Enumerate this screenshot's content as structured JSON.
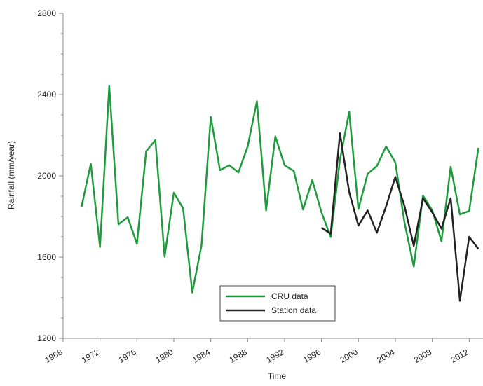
{
  "chart_data": {
    "type": "line",
    "x_label": "Time",
    "y_label": "Rainfall (mm/year)",
    "x": [
      1970,
      1971,
      1972,
      1973,
      1974,
      1975,
      1976,
      1977,
      1978,
      1979,
      1980,
      1981,
      1982,
      1983,
      1984,
      1985,
      1986,
      1987,
      1988,
      1989,
      1990,
      1991,
      1992,
      1993,
      1994,
      1995,
      1996,
      1997,
      1998,
      1999,
      2000,
      2001,
      2002,
      2003,
      2004,
      2005,
      2006,
      2007,
      2008,
      2009,
      2010,
      2011,
      2012,
      2013
    ],
    "series": [
      {
        "name": "CRU data",
        "color": "#1e9b3c",
        "values": [
          1848,
          2059,
          1650,
          2442,
          1761,
          1796,
          1665,
          2121,
          2176,
          1602,
          1917,
          1841,
          1426,
          1658,
          2290,
          2028,
          2052,
          2017,
          2145,
          2367,
          1830,
          2194,
          2052,
          2024,
          1834,
          1979,
          1820,
          1699,
          2080,
          2315,
          1837,
          2010,
          2048,
          2145,
          2066,
          1768,
          1554,
          1903,
          1830,
          1678,
          2045,
          1810,
          1827,
          2138
        ]
      },
      {
        "name": "Station data",
        "color": "#222222",
        "values": [
          null,
          null,
          null,
          null,
          null,
          null,
          null,
          null,
          null,
          null,
          null,
          null,
          null,
          null,
          null,
          null,
          null,
          null,
          null,
          null,
          null,
          null,
          null,
          null,
          null,
          null,
          1745,
          1715,
          2210,
          1920,
          1755,
          1830,
          1720,
          1850,
          1995,
          1850,
          1655,
          1890,
          1820,
          1740,
          1890,
          1385,
          1700,
          1640
        ]
      }
    ],
    "xlim": [
      1968,
      2013.5
    ],
    "xticks": [
      1968,
      1972,
      1976,
      1980,
      1984,
      1988,
      1992,
      1996,
      2000,
      2004,
      2008,
      2012
    ],
    "ylim": [
      1200,
      2800
    ],
    "yticks": [
      1200,
      1600,
      2000,
      2400,
      2800
    ],
    "yminorticks": [
      1300,
      1400,
      1500,
      1700,
      1800,
      1900,
      2100,
      2200,
      2300,
      2500,
      2600,
      2700
    ],
    "grid": false,
    "legend": "bottom-center"
  }
}
